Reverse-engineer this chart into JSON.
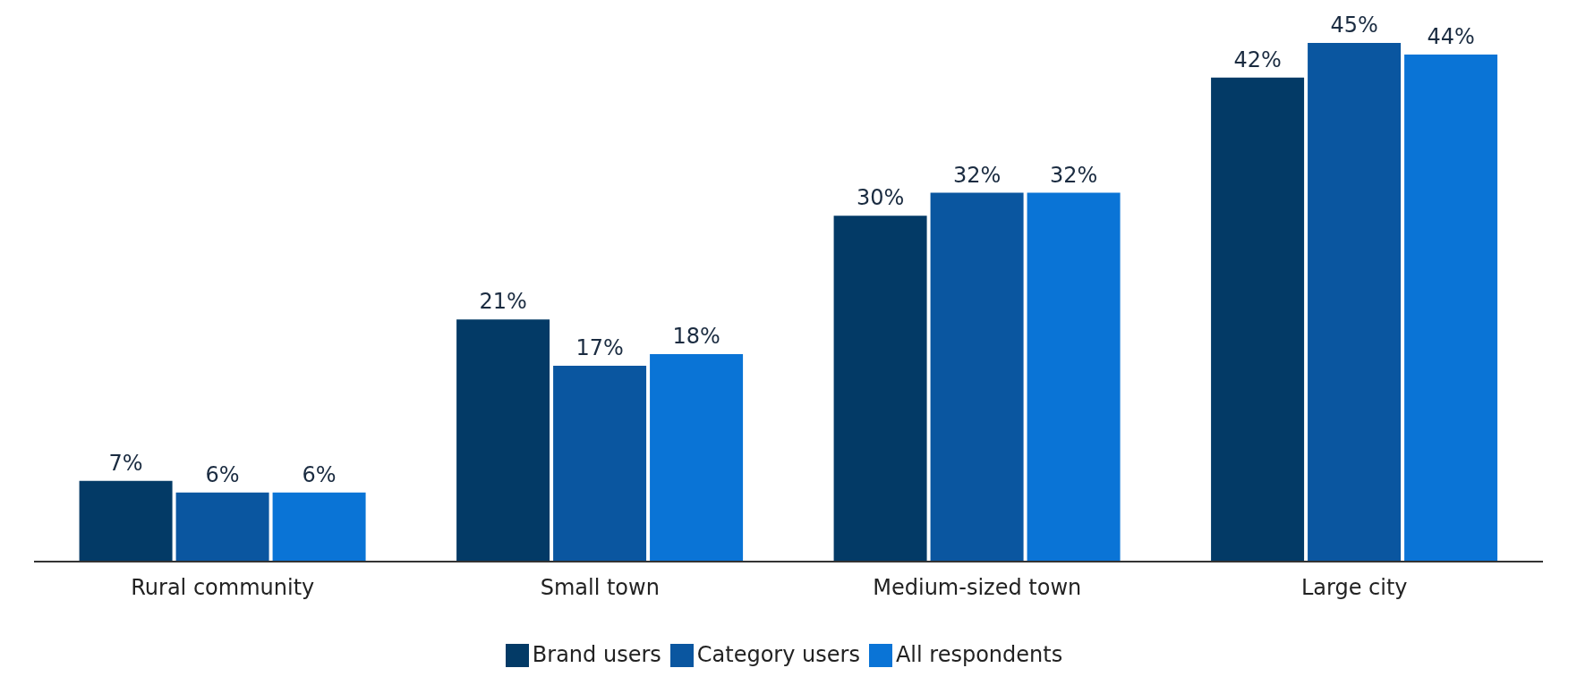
{
  "chart_data": {
    "type": "bar",
    "categories": [
      "Rural community",
      "Small town",
      "Medium-sized town",
      "Large city"
    ],
    "series": [
      {
        "name": "Brand users",
        "color": "#033a66",
        "values": [
          7,
          21,
          30,
          42
        ],
        "value_labels": [
          "7%",
          "21%",
          "30%",
          "42%"
        ]
      },
      {
        "name": "Category users",
        "color": "#0a56a0",
        "values": [
          6,
          17,
          32,
          45
        ],
        "value_labels": [
          "6%",
          "17%",
          "32%",
          "45%"
        ]
      },
      {
        "name": "All respondents",
        "color": "#0a74d6",
        "values": [
          6,
          18,
          32,
          44
        ],
        "value_labels": [
          "6%",
          "18%",
          "32%",
          "44%"
        ]
      }
    ],
    "legend": "bottom",
    "grid": false
  }
}
